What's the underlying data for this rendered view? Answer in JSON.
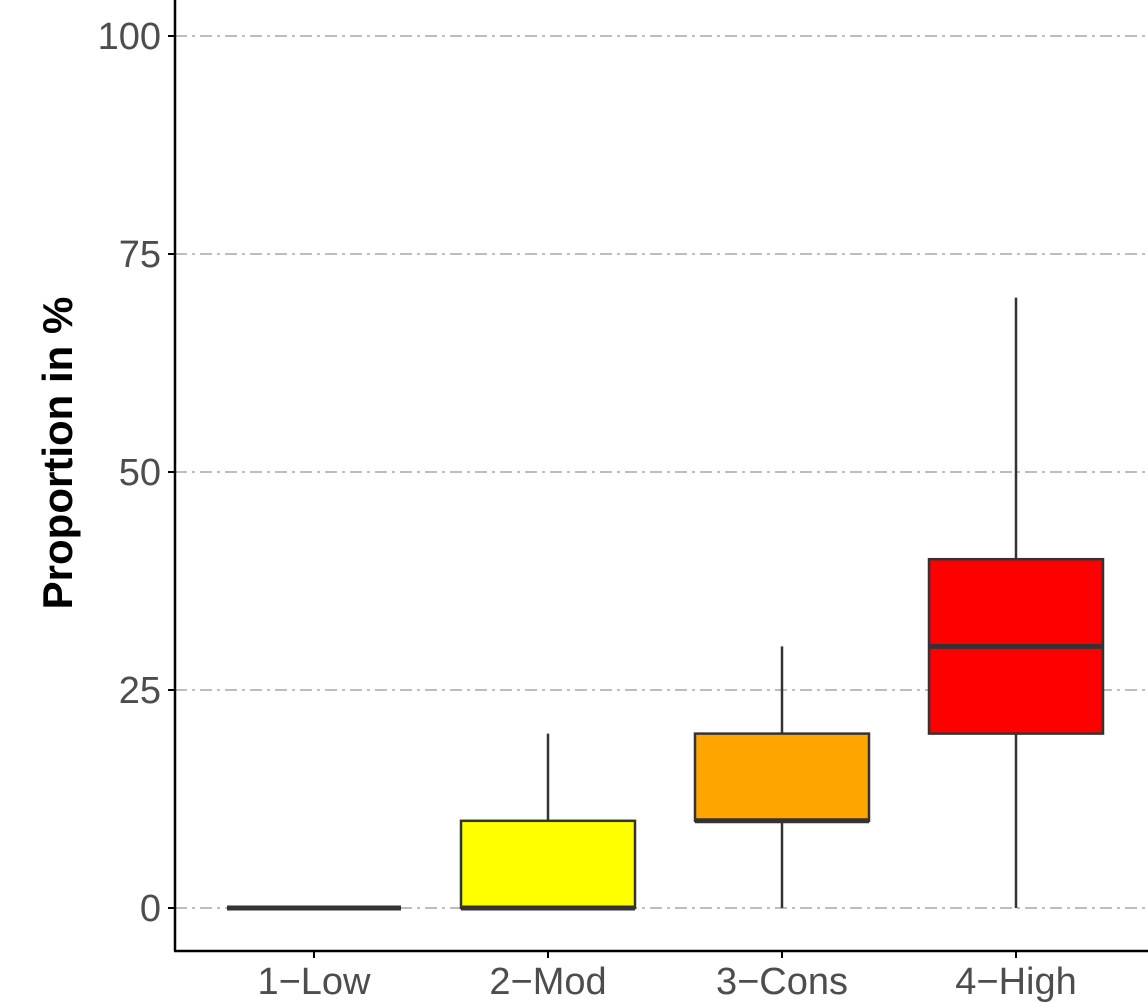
{
  "chart_data": {
    "type": "box",
    "ylabel": "Proportion in %",
    "xlabel": "",
    "ylim": [
      0,
      100
    ],
    "yticks": [
      0,
      25,
      50,
      75,
      100
    ],
    "grid": "horizontal dash-dot",
    "categories": [
      "1−Low",
      "2−Mod",
      "3−Cons",
      "4−High"
    ],
    "boxes": [
      {
        "category": "1−Low",
        "min": 0,
        "q1": 0,
        "median": 0,
        "q3": 0,
        "max": 0,
        "fill": "#e60000"
      },
      {
        "category": "2−Mod",
        "min": 0,
        "q1": 0,
        "median": 0,
        "q3": 10,
        "max": 20,
        "fill": "#ffff00"
      },
      {
        "category": "3−Cons",
        "min": 0,
        "q1": 10,
        "median": 10,
        "q3": 20,
        "max": 30,
        "fill": "#ffa500"
      },
      {
        "category": "4−High",
        "min": 0,
        "q1": 20,
        "median": 30,
        "q3": 40,
        "max": 70,
        "fill": "#ff0000"
      }
    ]
  }
}
